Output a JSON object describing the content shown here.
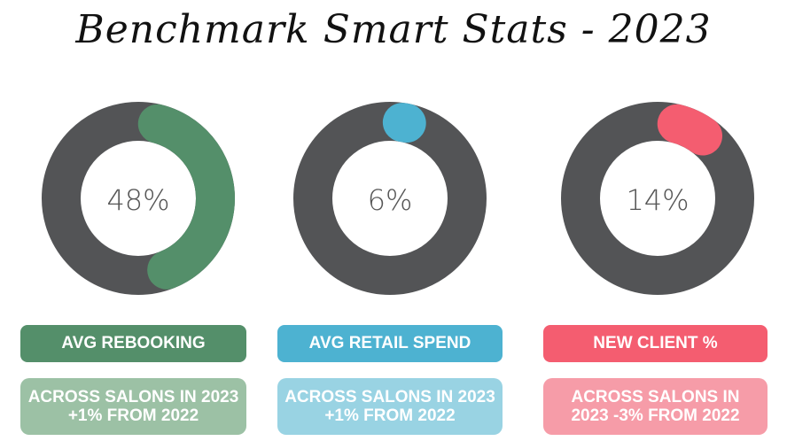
{
  "title": "Benchmark Smart Stats - 2023",
  "chart_data": [
    {
      "type": "pie",
      "variant": "donut",
      "value": 48,
      "value_label": "48%",
      "label": "AVG REBOOKING",
      "note": "ACROSS SALONS IN 2023 +1% FROM 2022",
      "color": "#548F6A",
      "track_color": "#535456",
      "label_color": "#548F6A",
      "note_color": "#9CC1A5"
    },
    {
      "type": "pie",
      "variant": "donut",
      "value": 6,
      "value_label": "6%",
      "label": "AVG RETAIL SPEND",
      "note": "ACROSS SALONS IN 2023 +1% FROM 2022",
      "color": "#4DB2D1",
      "track_color": "#535456",
      "label_color": "#4DB2D1",
      "note_color": "#99D3E3"
    },
    {
      "type": "pie",
      "variant": "donut",
      "value": 14,
      "value_label": "14%",
      "label": "NEW CLIENT %",
      "note": "ACROSS SALONS IN 2023 -3% FROM 2022",
      "color": "#F45D70",
      "track_color": "#535456",
      "label_color": "#F45D70",
      "note_color": "#F69CA8"
    }
  ]
}
